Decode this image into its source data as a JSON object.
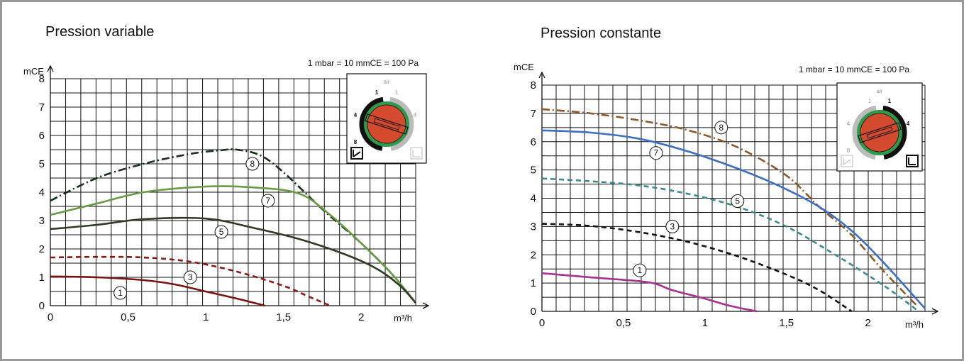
{
  "chart_data": [
    {
      "type": "line",
      "title": "Pression variable",
      "note": "1 mbar = 10 mmCE = 100 Pa",
      "ylabel": "mCE",
      "xlabel": "m³/h",
      "xlim": [
        0,
        2.35
      ],
      "ylim": [
        0,
        8
      ],
      "xticks": [
        "0",
        "0,5",
        "1",
        "1,5",
        "2"
      ],
      "yticks": [
        "0",
        "1",
        "2",
        "3",
        "4",
        "5",
        "6",
        "7",
        "8"
      ],
      "grid": true,
      "series": [
        {
          "name": "8",
          "color": "#1a2e1a",
          "dash": "dashdot",
          "x": [
            0,
            0.3,
            0.6,
            0.9,
            1.1,
            1.2,
            1.35,
            1.5,
            1.75,
            2.0,
            2.2,
            2.35
          ],
          "y": [
            3.7,
            4.5,
            5.0,
            5.35,
            5.48,
            5.5,
            5.3,
            4.7,
            3.4,
            2.2,
            1.1,
            0.1
          ]
        },
        {
          "name": "7",
          "color": "#6a9a45",
          "dash": "solid",
          "x": [
            0,
            0.3,
            0.6,
            1.0,
            1.3,
            1.6,
            1.8,
            2.0,
            2.2,
            2.35
          ],
          "y": [
            3.2,
            3.6,
            4.0,
            4.2,
            4.17,
            3.95,
            3.2,
            2.2,
            1.1,
            0.1
          ]
        },
        {
          "name": "5",
          "color": "#2f3a25",
          "dash": "solid",
          "x": [
            0,
            0.3,
            0.6,
            1.0,
            1.3,
            1.6,
            1.9,
            2.1,
            2.25,
            2.35
          ],
          "y": [
            2.7,
            2.85,
            3.05,
            3.07,
            2.75,
            2.35,
            1.8,
            1.3,
            0.7,
            0.1
          ]
        },
        {
          "name": "3",
          "color": "#8b1a14",
          "dash": "dashed",
          "x": [
            0,
            0.3,
            0.6,
            0.9,
            1.2,
            1.5,
            1.65,
            1.8
          ],
          "y": [
            1.7,
            1.72,
            1.7,
            1.55,
            1.2,
            0.7,
            0.35,
            0.0
          ]
        },
        {
          "name": "1",
          "color": "#7a1414",
          "dash": "solid",
          "x": [
            0,
            0.3,
            0.6,
            0.8,
            1.0,
            1.2,
            1.38
          ],
          "y": [
            1.03,
            1.0,
            0.9,
            0.75,
            0.5,
            0.25,
            0.0
          ]
        }
      ],
      "labels": [
        {
          "text": "8",
          "x": 1.3,
          "y": 5.0
        },
        {
          "text": "7",
          "x": 1.4,
          "y": 3.7
        },
        {
          "text": "5",
          "x": 1.1,
          "y": 2.6
        },
        {
          "text": "3",
          "x": 0.9,
          "y": 1.0
        },
        {
          "text": "1",
          "x": 0.45,
          "y": 0.45
        }
      ],
      "dial": {
        "numbers": [
          "1",
          "4",
          "8",
          "4",
          "1"
        ],
        "caption": "air",
        "active": "left"
      }
    },
    {
      "type": "line",
      "title": "Pression constante",
      "note": "1 mbar = 10 mmCE = 100 Pa",
      "ylabel": "mCE",
      "xlabel": "m³/h",
      "xlim": [
        0,
        2.35
      ],
      "ylim": [
        0,
        8
      ],
      "xticks": [
        "0",
        "0,5",
        "1",
        "1,5",
        "2"
      ],
      "yticks": [
        "0",
        "1",
        "2",
        "3",
        "4",
        "5",
        "6",
        "7",
        "8"
      ],
      "grid": true,
      "series": [
        {
          "name": "8",
          "color": "#8b5a2b",
          "dash": "dashdot",
          "x": [
            0,
            0.3,
            0.6,
            0.9,
            1.2,
            1.5,
            1.7,
            1.9,
            2.1,
            2.3
          ],
          "y": [
            7.15,
            7.0,
            6.75,
            6.4,
            5.8,
            4.8,
            3.7,
            2.7,
            1.4,
            0.2
          ]
        },
        {
          "name": "7",
          "color": "#3d6fc0",
          "dash": "solid",
          "x": [
            0,
            0.3,
            0.6,
            0.9,
            1.2,
            1.45,
            1.7,
            1.9,
            2.1,
            2.35
          ],
          "y": [
            6.4,
            6.32,
            6.1,
            5.65,
            5.05,
            4.45,
            3.7,
            2.85,
            1.7,
            0.1
          ]
        },
        {
          "name": "5",
          "color": "#3a8a8a",
          "dash": "dashed",
          "x": [
            0,
            0.3,
            0.6,
            0.9,
            1.2,
            1.5,
            1.8,
            2.1,
            2.3
          ],
          "y": [
            4.7,
            4.6,
            4.45,
            4.15,
            3.7,
            3.0,
            2.0,
            0.9,
            0.05
          ]
        },
        {
          "name": "3",
          "color": "#111111",
          "dash": "dashed",
          "x": [
            0,
            0.3,
            0.6,
            0.9,
            1.2,
            1.5,
            1.7,
            1.9
          ],
          "y": [
            3.1,
            3.02,
            2.8,
            2.45,
            1.95,
            1.3,
            0.75,
            0.0
          ]
        },
        {
          "name": "1",
          "color": "#a83290",
          "dash": "solid",
          "x": [
            0,
            0.3,
            0.65,
            0.8,
            1.0,
            1.15,
            1.32
          ],
          "y": [
            1.35,
            1.2,
            1.03,
            0.75,
            0.45,
            0.2,
            0.0
          ]
        }
      ],
      "labels": [
        {
          "text": "8",
          "x": 1.1,
          "y": 6.5
        },
        {
          "text": "7",
          "x": 0.7,
          "y": 5.6
        },
        {
          "text": "5",
          "x": 1.2,
          "y": 3.9
        },
        {
          "text": "3",
          "x": 0.8,
          "y": 3.0
        },
        {
          "text": "1",
          "x": 0.6,
          "y": 1.45
        }
      ],
      "dial": {
        "numbers": [
          "1",
          "4",
          "8",
          "4",
          "1"
        ],
        "caption": "air",
        "active": "right"
      }
    }
  ]
}
